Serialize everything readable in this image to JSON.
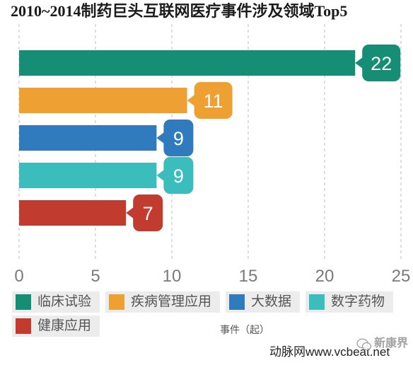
{
  "chart_data": {
    "type": "bar",
    "orientation": "horizontal",
    "title": "2010~2014制药巨头互联网医疗事件涉及领域Top5",
    "xlabel": "事件（起）",
    "xlim": [
      0,
      25
    ],
    "xticks": [
      0,
      5,
      10,
      15,
      20,
      25
    ],
    "grid": true,
    "legend_position": "bottom-left",
    "categories": [
      "临床试验",
      "疾病管理应用",
      "大数据",
      "数字药物",
      "健康应用"
    ],
    "values": [
      22,
      11,
      9,
      9,
      7
    ],
    "colors": [
      "#168e76",
      "#efa032",
      "#2f7bbd",
      "#3bbdbd",
      "#c13b2e"
    ]
  },
  "footer": {
    "source": "动脉网www.vcbeat.net",
    "watermark": "新康界",
    "watermark_icon": "wechat-icon"
  }
}
